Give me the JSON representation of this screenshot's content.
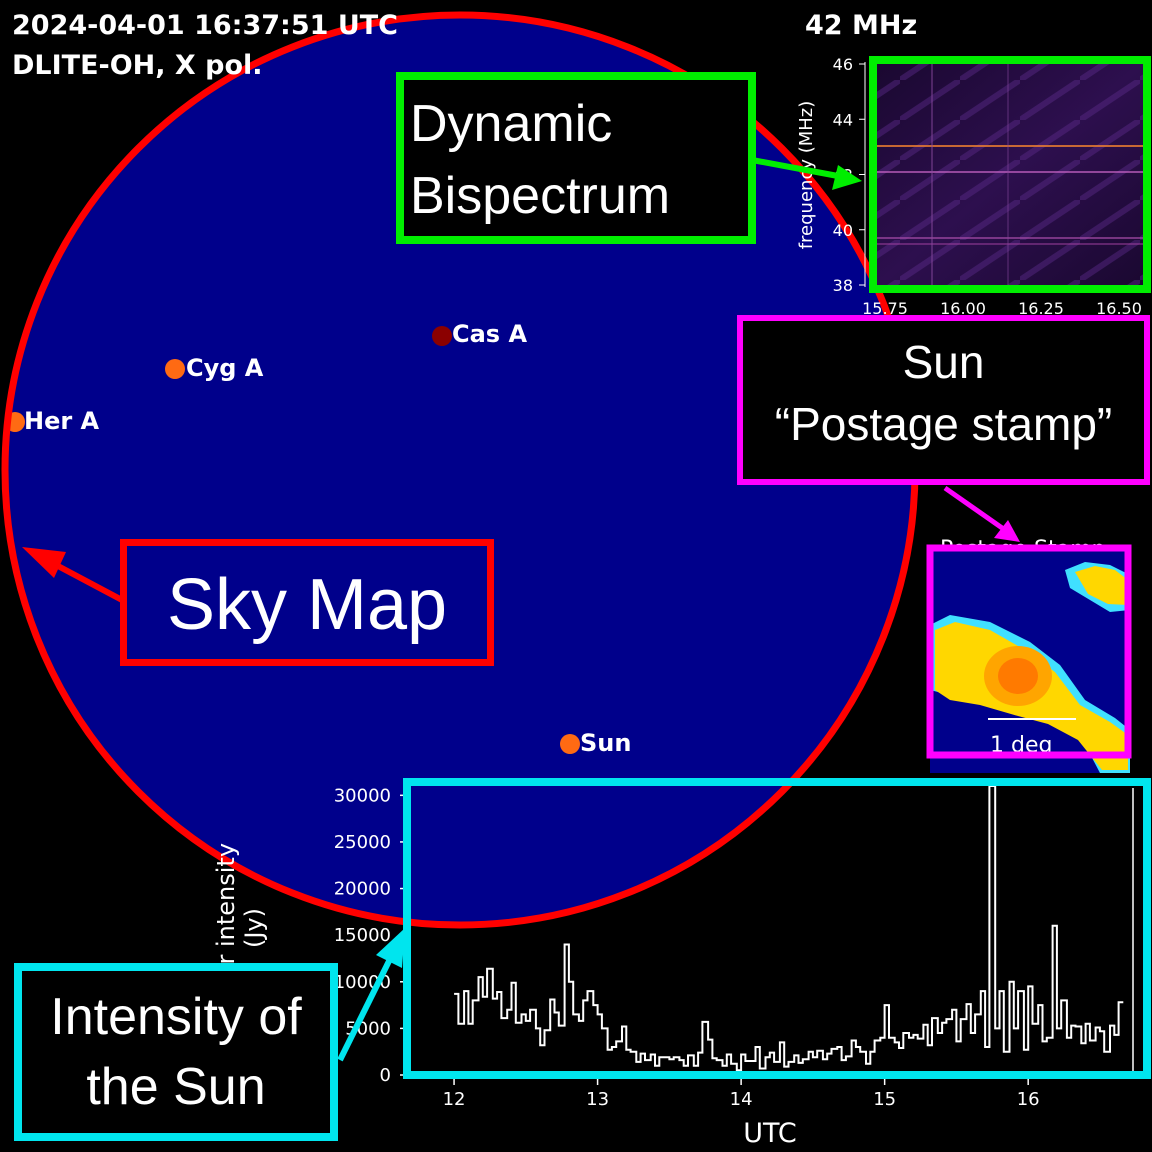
{
  "header": {
    "timestamp": "2024-04-01 16:37:51 UTC",
    "station": "DLITE-OH, X pol.",
    "frequency": "42 MHz"
  },
  "colors": {
    "sky_fill": "#00008b",
    "sky_map_outline": "#ff0000",
    "bispectrum_outline": "#00ee00",
    "postage_outline": "#ff00ff",
    "intensity_outline": "#00e5ee",
    "source_marker": "#ff6a13",
    "cas_marker": "#8b0000"
  },
  "sky_map": {
    "sources": [
      {
        "name": "Cas A",
        "marker": "dark-red"
      },
      {
        "name": "Cyg A",
        "marker": "orange"
      },
      {
        "name": "Her A",
        "marker": "orange"
      },
      {
        "name": "Sun",
        "marker": "orange"
      }
    ]
  },
  "bispectrum": {
    "ylabel": "frequency (MHz)",
    "yticks": [
      "46",
      "44",
      "42",
      "40",
      "38"
    ],
    "xticks": [
      "15.75",
      "16.00",
      "16.25",
      "16.50"
    ]
  },
  "postage_stamp": {
    "scale_label": "1 deg",
    "title_fragment": "Postage Stamp"
  },
  "callouts": {
    "bispectrum": [
      "Dynamic",
      "Bispectrum"
    ],
    "postage": [
      "Sun",
      "“Postage stamp”"
    ],
    "sky_map": "Sky Map",
    "intensity": [
      "Intensity of",
      "the Sun"
    ]
  },
  "chart_data": {
    "type": "line",
    "xlabel": "UTC",
    "ylabel": "solar intensity (Jy)",
    "xlim": [
      11.7,
      16.8
    ],
    "ylim": [
      0,
      31000
    ],
    "xticks": [
      12,
      13,
      14,
      15,
      16
    ],
    "yticks": [
      0,
      5000,
      10000,
      15000,
      20000,
      25000,
      30000
    ],
    "ytick_labels": [
      "0",
      "5000",
      "10000",
      "15000",
      "20000",
      "25000",
      "30000"
    ],
    "series": [
      {
        "name": "",
        "x": [
          12.0,
          12.03,
          12.07,
          12.1,
          12.13,
          12.17,
          12.2,
          12.23,
          12.27,
          12.3,
          12.33,
          12.37,
          12.4,
          12.43,
          12.47,
          12.5,
          12.53,
          12.57,
          12.6,
          12.63,
          12.67,
          12.7,
          12.73,
          12.77,
          12.8,
          12.83,
          12.87,
          12.9,
          12.93,
          12.97,
          13.0,
          13.03,
          13.07,
          13.1,
          13.13,
          13.17,
          13.2,
          13.23,
          13.27,
          13.3,
          13.33,
          13.37,
          13.4,
          13.43,
          13.47,
          13.5,
          13.53,
          13.57,
          13.6,
          13.63,
          13.67,
          13.7,
          13.73,
          13.77,
          13.8,
          13.83,
          13.87,
          13.9,
          13.93,
          13.97,
          14.0,
          14.03,
          14.07,
          14.1,
          14.13,
          14.17,
          14.2,
          14.23,
          14.27,
          14.3,
          14.33,
          14.37,
          14.4,
          14.43,
          14.47,
          14.5,
          14.53,
          14.57,
          14.6,
          14.63,
          14.67,
          14.7,
          14.73,
          14.77,
          14.8,
          14.83,
          14.87,
          14.9,
          14.93,
          14.97,
          15.0,
          15.03,
          15.07,
          15.1,
          15.13,
          15.17,
          15.2,
          15.23,
          15.27,
          15.3,
          15.33,
          15.37,
          15.4,
          15.43,
          15.47,
          15.5,
          15.53,
          15.57,
          15.6,
          15.63,
          15.67,
          15.7,
          15.73,
          15.77,
          15.8,
          15.83,
          15.87,
          15.9,
          15.93,
          15.97,
          16.0,
          16.03,
          16.07,
          16.1,
          16.13,
          16.17,
          16.2,
          16.23,
          16.27,
          16.3,
          16.33,
          16.37,
          16.4,
          16.43,
          16.47,
          16.5,
          16.53,
          16.57,
          16.6,
          16.63
        ],
        "y": [
          8700,
          5500,
          9000,
          5500,
          8000,
          10500,
          8400,
          11400,
          8200,
          8900,
          6100,
          7000,
          9900,
          5600,
          6500,
          5800,
          7000,
          5000,
          3200,
          4800,
          8100,
          6700,
          5300,
          14000,
          10000,
          6500,
          5800,
          8000,
          9000,
          7500,
          6500,
          5000,
          2700,
          3000,
          3600,
          5200,
          2700,
          2500,
          1400,
          2300,
          1600,
          2200,
          1000,
          1900,
          1900,
          1700,
          1900,
          1600,
          1000,
          2100,
          1000,
          2400,
          5700,
          3800,
          1800,
          1600,
          1000,
          2200,
          1200,
          500,
          2200,
          1500,
          1500,
          3000,
          700,
          1900,
          2400,
          1400,
          3500,
          900,
          1400,
          2100,
          1300,
          1700,
          2500,
          1900,
          2600,
          1700,
          2300,
          2800,
          3000,
          1600,
          2000,
          3700,
          3000,
          2500,
          1200,
          2500,
          3700,
          4000,
          7500,
          4000,
          3500,
          2900,
          4500,
          4000,
          4300,
          3900,
          5400,
          3200,
          6100,
          4500,
          5600,
          6000,
          7000,
          3600,
          6000,
          7600,
          4500,
          6500,
          9000,
          3000,
          31000,
          5000,
          9000,
          2500,
          10000,
          5000,
          9000,
          2700,
          9500,
          5500,
          7500,
          3600,
          4000,
          16000,
          5000,
          8000,
          4000,
          5300,
          5200,
          3400,
          5500,
          3700,
          5100,
          4700,
          2500,
          5300,
          4300,
          7800
        ]
      }
    ]
  }
}
